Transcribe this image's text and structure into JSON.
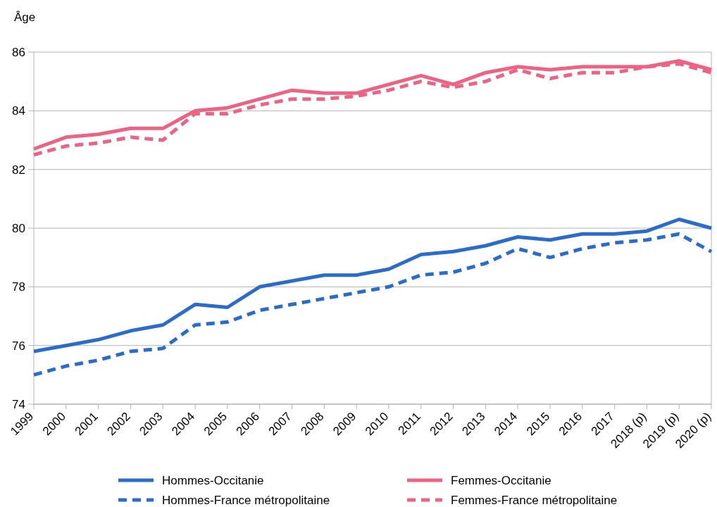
{
  "chart_data": {
    "type": "line",
    "ylabel": "Âge",
    "categories": [
      "1999",
      "2000",
      "2001",
      "2002",
      "2003",
      "2004",
      "2005",
      "2006",
      "2007",
      "2008",
      "2009",
      "2010",
      "2011",
      "2012",
      "2013",
      "2014",
      "2015",
      "2016",
      "2017",
      "2018 (p)",
      "2019 (p)",
      "2020 (p)"
    ],
    "series": [
      {
        "name": "Hommes-Occitanie",
        "color": "#2a6ccb",
        "line_style": "solid",
        "values": [
          75.8,
          76.0,
          76.2,
          76.5,
          76.7,
          77.4,
          77.3,
          78.0,
          78.2,
          78.4,
          78.4,
          78.6,
          79.1,
          79.2,
          79.4,
          79.7,
          79.6,
          79.8,
          79.8,
          79.9,
          80.3,
          80.0
        ]
      },
      {
        "name": "Femmes-Occitanie",
        "color": "#ee6283",
        "line_style": "solid",
        "values": [
          82.7,
          83.1,
          83.2,
          83.4,
          83.4,
          84.0,
          84.1,
          84.4,
          84.7,
          84.6,
          84.6,
          84.9,
          85.2,
          84.9,
          85.3,
          85.5,
          85.4,
          85.5,
          85.5,
          85.5,
          85.7,
          85.4
        ]
      },
      {
        "name": "Hommes-France métropolitaine",
        "color": "#2a6ccb",
        "line_style": "dashed",
        "values": [
          75.0,
          75.3,
          75.5,
          75.8,
          75.9,
          76.7,
          76.8,
          77.2,
          77.4,
          77.6,
          77.8,
          78.0,
          78.4,
          78.5,
          78.8,
          79.3,
          79.0,
          79.3,
          79.5,
          79.6,
          79.8,
          79.2
        ]
      },
      {
        "name": "Femmes-France métropolitaine",
        "color": "#ee6283",
        "line_style": "dashed",
        "values": [
          82.5,
          82.8,
          82.9,
          83.1,
          83.0,
          83.9,
          83.9,
          84.2,
          84.4,
          84.4,
          84.5,
          84.7,
          85.0,
          84.8,
          85.0,
          85.4,
          85.1,
          85.3,
          85.3,
          85.5,
          85.6,
          85.3
        ]
      }
    ],
    "ylim": [
      74,
      86
    ],
    "yticks": [
      74,
      76,
      78,
      80,
      82,
      84,
      86
    ],
    "grid": "y",
    "legend": "bottom",
    "marker": "none"
  }
}
